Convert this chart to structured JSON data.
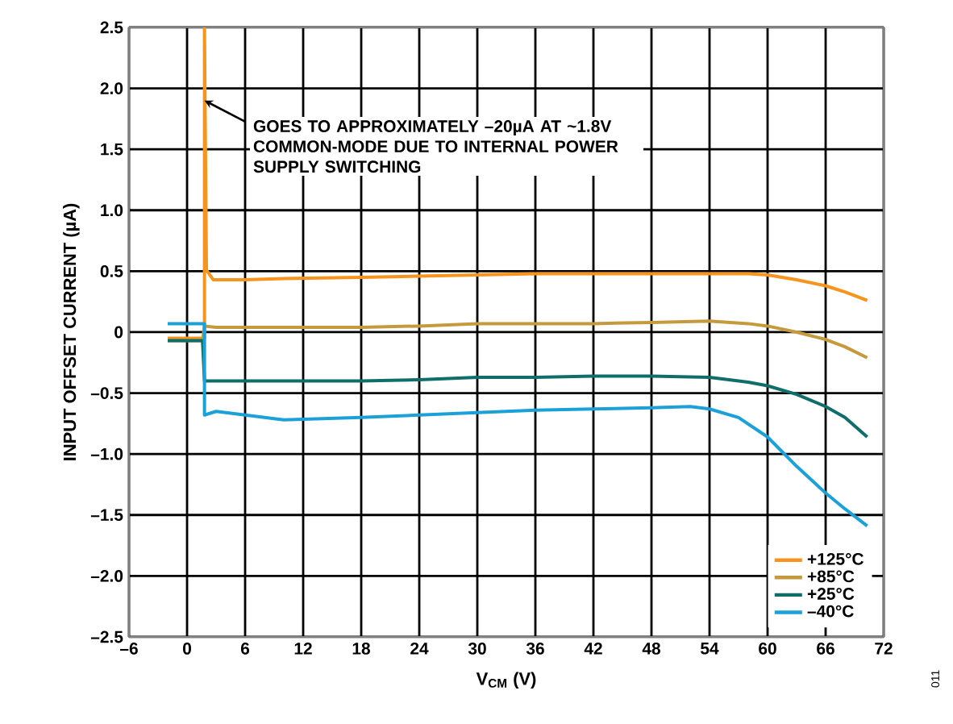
{
  "chart_data": {
    "type": "line",
    "xlabel": "V$_{CM}$ (V)",
    "ylabel": "INPUT OFFSET CURRENT (µA)",
    "xlim": [
      -6,
      72
    ],
    "ylim": [
      -2.5,
      2.5
    ],
    "xticks": [
      {
        "value": -6,
        "label": "–6"
      },
      0,
      6,
      12,
      18,
      24,
      30,
      36,
      42,
      48,
      54,
      60,
      66,
      72
    ],
    "yticks": [
      {
        "value": -2.5,
        "label": "–2.5"
      },
      {
        "value": -2,
        "label": "–2.0"
      },
      {
        "value": -1.5,
        "label": "–1.5"
      },
      {
        "value": -1,
        "label": "–1.0"
      },
      {
        "value": -0.5,
        "label": "–0.5"
      },
      0,
      {
        "value": 0.5,
        "label": "0.5"
      },
      {
        "value": 1,
        "label": "1.0"
      },
      {
        "value": 1.5,
        "label": "1.5"
      },
      {
        "value": 2,
        "label": "2.0"
      },
      {
        "value": 2.5,
        "label": "2.5"
      }
    ],
    "grid": true,
    "legend": "bottom right",
    "marker": "none",
    "line_style": "solid",
    "series": [
      {
        "name": "+125°C",
        "color": "#f7941d",
        "x": [
          -2,
          1.6,
          1.8,
          1.8,
          2.0,
          2.7,
          6,
          10,
          18,
          24,
          30,
          36,
          42,
          48,
          54,
          58,
          60,
          63,
          66,
          68,
          70.3
        ],
        "values": [
          -0.05,
          -0.05,
          -0.05,
          2.5,
          0.51,
          0.43,
          0.43,
          0.44,
          0.45,
          0.46,
          0.47,
          0.48,
          0.48,
          0.48,
          0.48,
          0.48,
          0.47,
          0.43,
          0.38,
          0.33,
          0.26
        ]
      },
      {
        "name": "+85°C",
        "color": "#c49a3c",
        "x": [
          -2,
          1.6,
          1.8,
          3,
          6,
          12,
          18,
          24,
          30,
          36,
          42,
          48,
          54,
          58,
          60,
          63,
          66,
          68,
          70.3
        ],
        "values": [
          -0.07,
          -0.07,
          0.05,
          0.04,
          0.04,
          0.04,
          0.04,
          0.05,
          0.07,
          0.07,
          0.07,
          0.08,
          0.09,
          0.07,
          0.05,
          0.0,
          -0.06,
          -0.12,
          -0.21
        ]
      },
      {
        "name": "+25°C",
        "color": "#0f6e6a",
        "x": [
          -2,
          1.6,
          1.8,
          3,
          6,
          12,
          18,
          24,
          30,
          36,
          42,
          48,
          54,
          58,
          60,
          63,
          66,
          68,
          70.3
        ],
        "values": [
          -0.07,
          -0.07,
          -0.4,
          -0.4,
          -0.4,
          -0.4,
          -0.4,
          -0.39,
          -0.37,
          -0.37,
          -0.36,
          -0.36,
          -0.37,
          -0.41,
          -0.44,
          -0.51,
          -0.61,
          -0.7,
          -0.86
        ]
      },
      {
        "name": "–40°C",
        "color": "#1ba1d8",
        "x": [
          -2,
          1.6,
          1.8,
          1.8,
          3,
          6,
          10,
          18,
          24,
          30,
          36,
          42,
          48,
          52,
          54,
          57,
          60,
          63,
          66,
          68,
          70.3
        ],
        "values": [
          0.07,
          0.07,
          0.07,
          -0.68,
          -0.65,
          -0.68,
          -0.72,
          -0.7,
          -0.68,
          -0.66,
          -0.64,
          -0.63,
          -0.62,
          -0.61,
          -0.63,
          -0.7,
          -0.86,
          -1.1,
          -1.32,
          -1.45,
          -1.59
        ]
      }
    ],
    "annotations": [
      {
        "text": "GOES TO APPROXIMATELY –20µA AT ~1.8V COMMON-MODE DUE TO INTERNAL POWER SUPPLY SWITCHING",
        "x": 1.8,
        "y": 1.9
      },
      "011"
    ]
  }
}
